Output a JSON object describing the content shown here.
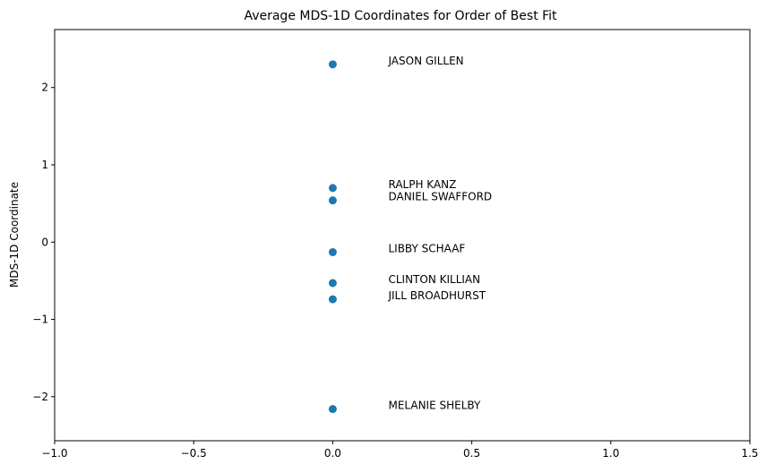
{
  "chart_data": {
    "type": "scatter",
    "title": "Average MDS-1D Coordinates for Order of Best Fit",
    "xlabel": "",
    "ylabel": "MDS-1D Coordinate",
    "xlim": [
      -1.0,
      1.5
    ],
    "ylim": [
      -2.57,
      2.75
    ],
    "xticks": [
      -1.0,
      -0.5,
      0.0,
      0.5,
      1.0,
      1.5
    ],
    "xtick_labels": [
      "−1.0",
      "−0.5",
      "0.0",
      "0.5",
      "1.0",
      "1.5"
    ],
    "yticks": [
      -2,
      -1,
      0,
      1,
      2
    ],
    "ytick_labels": [
      "−2",
      "−1",
      "0",
      "1",
      "2"
    ],
    "grid": false,
    "marker_color": "#1f77b4",
    "points": [
      {
        "label": "JASON GILLEN",
        "x": 0.0,
        "y": 2.3
      },
      {
        "label": "RALPH KANZ",
        "x": 0.0,
        "y": 0.7
      },
      {
        "label": "DANIEL SWAFFORD",
        "x": 0.0,
        "y": 0.54
      },
      {
        "label": "LIBBY SCHAAF",
        "x": 0.0,
        "y": -0.13
      },
      {
        "label": "CLINTON KILLIAN",
        "x": 0.0,
        "y": -0.53
      },
      {
        "label": "JILL BROADHURST",
        "x": 0.0,
        "y": -0.74
      },
      {
        "label": "MELANIE SHELBY",
        "x": 0.0,
        "y": -2.16
      }
    ]
  }
}
